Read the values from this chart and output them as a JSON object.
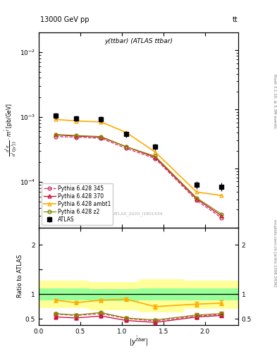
{
  "title_top": "13000 GeV pp",
  "title_top_right": "tt",
  "plot_title": "y(ttbar) (ATLAS ttbar)",
  "watermark": "ATLAS_2020_I1801434",
  "right_label_top": "Rivet 3.1.10, ≥ 3.3M events",
  "right_label_bottom": "mcplots.cern.ch [arXiv:1306.3436]",
  "ylabel_ratio": "Ratio to ATLAS",
  "atlas_x": [
    0.2,
    0.45,
    0.75,
    1.05,
    1.4,
    1.9,
    2.2
  ],
  "atlas_y": [
    0.00105,
    0.00095,
    0.00092,
    0.00055,
    0.00035,
    9e-05,
    8.5e-05
  ],
  "atlas_yerr": [
    0.00012,
    0.0001,
    0.0001,
    6e-05,
    4e-05,
    1.2e-05,
    1.2e-05
  ],
  "py345_x": [
    0.2,
    0.45,
    0.75,
    1.05,
    1.4,
    1.9,
    2.2
  ],
  "py345_y": [
    0.0005,
    0.00049,
    0.00047,
    0.00033,
    0.00023,
    5.2e-05,
    2.8e-05
  ],
  "py370_x": [
    0.2,
    0.45,
    0.75,
    1.05,
    1.4,
    1.9,
    2.2
  ],
  "py370_y": [
    0.00053,
    0.00051,
    0.00049,
    0.00035,
    0.00024,
    5.5e-05,
    3e-05
  ],
  "pyambt1_x": [
    0.2,
    0.45,
    0.75,
    1.05,
    1.4,
    1.9,
    2.2
  ],
  "pyambt1_y": [
    0.00092,
    0.00087,
    0.00084,
    0.00058,
    0.00029,
    7e-05,
    6.2e-05
  ],
  "pyz2_x": [
    0.2,
    0.45,
    0.75,
    1.05,
    1.4,
    1.9,
    2.2
  ],
  "pyz2_y": [
    0.00054,
    0.00052,
    0.0005,
    0.00035,
    0.00025,
    5.7e-05,
    3.2e-05
  ],
  "ratio_py345": [
    0.6,
    0.57,
    0.61,
    0.51,
    0.46,
    0.56,
    0.59
  ],
  "ratio_py370": [
    0.54,
    0.52,
    0.56,
    0.47,
    0.43,
    0.54,
    0.57
  ],
  "ratio_pyambt1": [
    0.88,
    0.83,
    0.88,
    0.9,
    0.75,
    0.8,
    0.82
  ],
  "ratio_pyz2": [
    0.61,
    0.58,
    0.63,
    0.52,
    0.48,
    0.58,
    0.61
  ],
  "ratio_err_py345": [
    0.025,
    0.025,
    0.025,
    0.025,
    0.03,
    0.04,
    0.04
  ],
  "ratio_err_py370": [
    0.025,
    0.025,
    0.025,
    0.025,
    0.03,
    0.04,
    0.04
  ],
  "ratio_err_pyambt1": [
    0.03,
    0.03,
    0.03,
    0.04,
    0.04,
    0.05,
    0.05
  ],
  "ratio_err_pyz2": [
    0.025,
    0.025,
    0.025,
    0.025,
    0.03,
    0.04,
    0.04
  ],
  "band_yellow_edges": [
    0.0,
    0.6,
    1.2,
    1.75,
    2.4
  ],
  "band_yellow_low": [
    0.72,
    0.68,
    0.63,
    0.7
  ],
  "band_yellow_high": [
    1.28,
    1.24,
    1.3,
    1.28
  ],
  "band_green_edges": [
    0.0,
    0.6,
    1.2,
    1.75,
    2.4
  ],
  "band_green_low": [
    0.88,
    0.86,
    0.87,
    0.88
  ],
  "band_green_high": [
    1.12,
    1.1,
    1.12,
    1.12
  ],
  "color_atlas": "#000000",
  "color_py345": "#cc3366",
  "color_py370": "#cc0033",
  "color_pyambt1": "#ffaa00",
  "color_pyz2": "#888800",
  "color_yellow_band": "#ffff99",
  "color_green_band": "#99ff99",
  "ylim_main": [
    2e-05,
    0.02
  ],
  "ylim_ratio": [
    0.38,
    2.35
  ],
  "xlim": [
    0.0,
    2.4
  ]
}
